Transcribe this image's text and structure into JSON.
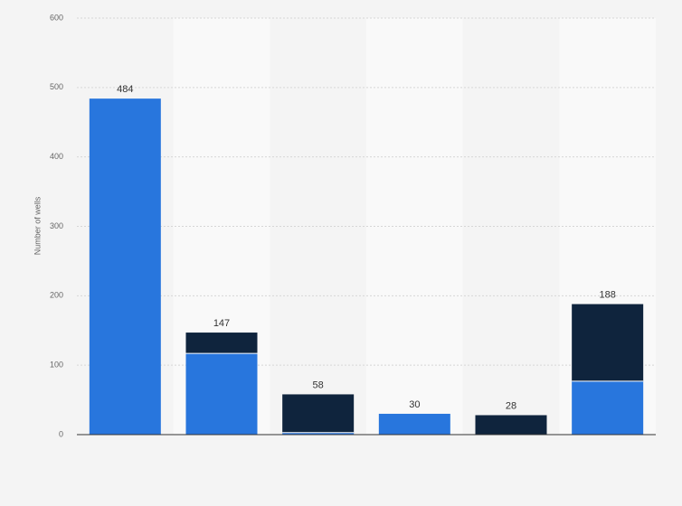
{
  "chart_data": {
    "type": "stacked-bar",
    "y_label": "Number of wells",
    "categories": [
      null,
      null,
      null,
      null,
      null,
      null
    ],
    "series": [
      {
        "color": "#2876dd",
        "values": [
          484,
          117,
          3,
          30,
          0,
          77
        ]
      },
      {
        "color": "#0f243d",
        "values": [
          0,
          30,
          55,
          0,
          28,
          111
        ]
      }
    ],
    "totals": [
      484,
      147,
      58,
      30,
      28,
      188
    ],
    "ylim": [
      0,
      600
    ],
    "yticks": [
      0,
      100,
      200,
      300,
      400,
      500,
      600
    ],
    "grid": true
  }
}
